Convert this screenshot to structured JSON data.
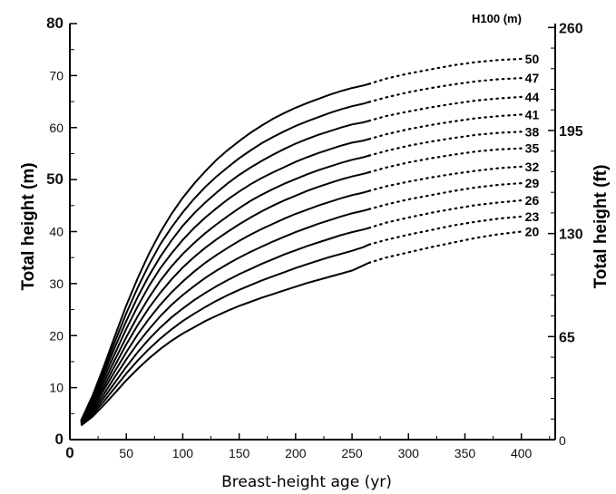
{
  "chart_data": {
    "type": "line",
    "xlabel": "Breast-height age (yr)",
    "ylabel": "Total height (m)",
    "ylabel_right": "Total height (ft)",
    "legend_title": "H100  (m)",
    "xlim": [
      0,
      430
    ],
    "ylim": [
      0,
      80
    ],
    "x_ticks": [
      0,
      50,
      100,
      150,
      200,
      250,
      300,
      350,
      400
    ],
    "x_tick_labels": [
      "0",
      "50",
      "100",
      "150",
      "200",
      "250",
      "300",
      "350",
      "400"
    ],
    "y_ticks": [
      0,
      10,
      20,
      30,
      40,
      50,
      60,
      70,
      80
    ],
    "y_tick_labels": [
      "0",
      "10",
      "20",
      "30",
      "40",
      "50",
      "60",
      "70",
      "80"
    ],
    "y_right_ticks": [
      0,
      65,
      130,
      195,
      260
    ],
    "y_right_tick_labels": [
      "0",
      "65",
      "130",
      "195",
      "260"
    ],
    "solid_until_age": 265,
    "x": [
      10,
      20,
      30,
      40,
      50,
      60,
      70,
      80,
      90,
      100,
      110,
      120,
      130,
      140,
      150,
      160,
      170,
      180,
      190,
      200,
      210,
      220,
      230,
      240,
      250,
      260,
      265,
      280,
      300,
      320,
      340,
      360,
      380,
      400
    ],
    "series": [
      {
        "name": "20",
        "values": [
          2.7,
          4.4,
          6.6,
          9.0,
          11.4,
          13.6,
          15.6,
          17.4,
          19.0,
          20.4,
          21.6,
          22.8,
          23.8,
          24.8,
          25.7,
          26.5,
          27.3,
          28.0,
          28.7,
          29.4,
          30.1,
          30.7,
          31.3,
          31.9,
          32.5,
          33.5,
          34.0,
          35.0,
          36.0,
          37.0,
          37.9,
          38.8,
          39.5,
          40.0
        ]
      },
      {
        "name": "23",
        "values": [
          2.8,
          4.8,
          7.3,
          10.0,
          12.7,
          15.2,
          17.4,
          19.4,
          21.2,
          22.8,
          24.2,
          25.5,
          26.7,
          27.8,
          28.8,
          29.7,
          30.6,
          31.4,
          32.2,
          33.0,
          33.7,
          34.4,
          35.1,
          35.7,
          36.3,
          37.0,
          37.5,
          38.4,
          39.4,
          40.3,
          41.2,
          41.9,
          42.5,
          42.9
        ]
      },
      {
        "name": "26",
        "values": [
          2.9,
          5.2,
          8.0,
          11.0,
          14.0,
          16.8,
          19.3,
          21.5,
          23.5,
          25.2,
          26.8,
          28.2,
          29.5,
          30.7,
          31.8,
          32.8,
          33.8,
          34.7,
          35.6,
          36.4,
          37.2,
          37.9,
          38.6,
          39.3,
          39.9,
          40.4,
          40.7,
          41.7,
          42.7,
          43.6,
          44.4,
          45.1,
          45.6,
          46.0
        ]
      },
      {
        "name": "29",
        "values": [
          3.0,
          5.6,
          8.7,
          12.1,
          15.4,
          18.5,
          21.2,
          23.7,
          25.9,
          27.8,
          29.5,
          31.1,
          32.5,
          33.8,
          35.0,
          36.1,
          37.1,
          38.1,
          39.0,
          39.9,
          40.7,
          41.5,
          42.2,
          42.9,
          43.5,
          44.0,
          44.3,
          45.2,
          46.2,
          47.0,
          47.8,
          48.5,
          49.0,
          49.3
        ]
      },
      {
        "name": "32",
        "values": [
          3.1,
          6.0,
          9.5,
          13.2,
          16.8,
          20.2,
          23.2,
          25.9,
          28.3,
          30.4,
          32.3,
          34.0,
          35.5,
          36.9,
          38.2,
          39.4,
          40.5,
          41.5,
          42.5,
          43.4,
          44.2,
          45.0,
          45.7,
          46.4,
          47.0,
          47.5,
          47.8,
          48.7,
          49.6,
          50.4,
          51.1,
          51.7,
          52.2,
          52.5
        ]
      },
      {
        "name": "35",
        "values": [
          3.2,
          6.4,
          10.2,
          14.3,
          18.3,
          22.0,
          25.3,
          28.2,
          30.8,
          33.1,
          35.1,
          36.9,
          38.5,
          40.0,
          41.4,
          42.7,
          43.9,
          45.0,
          46.0,
          46.9,
          47.8,
          48.6,
          49.3,
          50.0,
          50.6,
          51.1,
          51.4,
          52.3,
          53.3,
          54.1,
          54.8,
          55.4,
          55.8,
          56.0
        ]
      },
      {
        "name": "38",
        "values": [
          3.3,
          6.8,
          11.0,
          15.4,
          19.7,
          23.7,
          27.3,
          30.5,
          33.3,
          35.7,
          37.8,
          39.7,
          41.4,
          43.0,
          44.5,
          45.9,
          47.1,
          48.2,
          49.2,
          50.1,
          51.0,
          51.8,
          52.5,
          53.2,
          53.8,
          54.3,
          54.6,
          55.5,
          56.5,
          57.3,
          58.0,
          58.6,
          59.0,
          59.2
        ]
      },
      {
        "name": "41",
        "values": [
          3.4,
          7.2,
          11.8,
          16.6,
          21.3,
          25.6,
          29.5,
          32.9,
          35.8,
          38.4,
          40.7,
          42.7,
          44.5,
          46.2,
          47.7,
          49.1,
          50.3,
          51.4,
          52.4,
          53.4,
          54.3,
          55.1,
          55.8,
          56.5,
          57.1,
          57.5,
          57.8,
          58.7,
          59.7,
          60.5,
          61.2,
          61.8,
          62.2,
          62.5
        ]
      },
      {
        "name": "44",
        "values": [
          3.5,
          7.6,
          12.6,
          17.8,
          22.8,
          27.4,
          31.5,
          35.1,
          38.3,
          41.1,
          43.5,
          45.6,
          47.5,
          49.3,
          50.9,
          52.3,
          53.6,
          54.8,
          55.9,
          56.9,
          57.8,
          58.6,
          59.3,
          60.0,
          60.6,
          61.0,
          61.3,
          62.2,
          63.1,
          63.9,
          64.6,
          65.2,
          65.6,
          65.9
        ]
      },
      {
        "name": "47",
        "values": [
          3.6,
          8.0,
          13.3,
          18.9,
          24.3,
          29.2,
          33.6,
          37.5,
          40.8,
          43.7,
          46.3,
          48.6,
          50.6,
          52.4,
          54.1,
          55.6,
          57.0,
          58.2,
          59.3,
          60.3,
          61.2,
          62.0,
          62.8,
          63.5,
          64.1,
          64.6,
          64.9,
          65.8,
          66.8,
          67.6,
          68.3,
          68.9,
          69.3,
          69.5
        ]
      },
      {
        "name": "50",
        "values": [
          3.7,
          8.4,
          14.0,
          20.0,
          25.8,
          31.0,
          35.7,
          39.8,
          43.4,
          46.5,
          49.2,
          51.6,
          53.8,
          55.7,
          57.4,
          59.0,
          60.4,
          61.7,
          62.8,
          63.8,
          64.7,
          65.5,
          66.3,
          67.0,
          67.6,
          68.1,
          68.4,
          69.4,
          70.4,
          71.2,
          72.0,
          72.6,
          73.0,
          73.2
        ]
      }
    ],
    "grid": false,
    "legend_placement": "right, at end of each curve"
  }
}
